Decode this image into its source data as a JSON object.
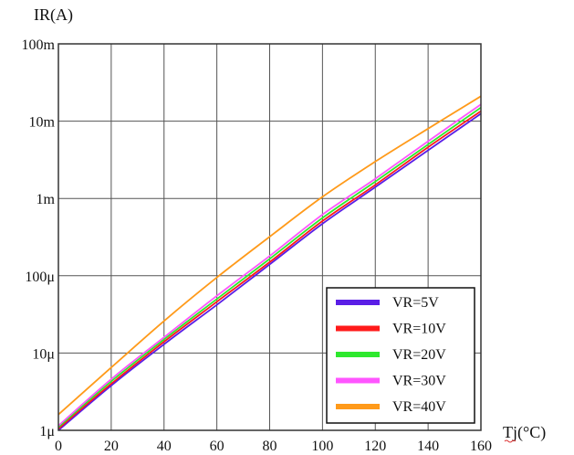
{
  "chart_data": {
    "type": "line",
    "title": "",
    "ylabel": "IR(A)",
    "xlabel": "Tj(°C)",
    "xlim": [
      0,
      160
    ],
    "ylim": [
      1e-06,
      0.1
    ],
    "yscale": "log",
    "grid": true,
    "legend_position": "bottom-right",
    "x_ticks": [
      0,
      20,
      40,
      60,
      80,
      100,
      120,
      140,
      160
    ],
    "x_tick_labels": [
      "0",
      "20",
      "40",
      "60",
      "80",
      "100",
      "120",
      "140",
      "160"
    ],
    "y_ticks": [
      1e-06,
      1e-05,
      0.0001,
      0.001,
      0.01,
      0.1
    ],
    "y_tick_labels": [
      "1μ",
      "10μ",
      "100μ",
      "1m",
      "10m",
      "100m"
    ],
    "x": [
      0,
      20,
      40,
      60,
      80,
      100,
      120,
      140,
      160
    ],
    "series": [
      {
        "name": "VR=5V",
        "color": "#5a1ee6",
        "values": [
          1e-06,
          3.8e-06,
          1.3e-05,
          4.2e-05,
          0.00014,
          0.00047,
          0.0014,
          0.0042,
          0.0125
        ]
      },
      {
        "name": "VR=10V",
        "color": "#ff1a1a",
        "values": [
          1.05e-06,
          4e-06,
          1.4e-05,
          4.6e-05,
          0.00015,
          0.00051,
          0.0015,
          0.0046,
          0.0135
        ]
      },
      {
        "name": "VR=20V",
        "color": "#2ee82e",
        "values": [
          1.1e-06,
          4.3e-06,
          1.5e-05,
          5e-05,
          0.000165,
          0.00056,
          0.00165,
          0.005,
          0.015
        ]
      },
      {
        "name": "VR=30V",
        "color": "#ff55ff",
        "values": [
          1.15e-06,
          4.6e-06,
          1.6e-05,
          5.5e-05,
          0.00018,
          0.00062,
          0.0018,
          0.0055,
          0.0165
        ]
      },
      {
        "name": "VR=40V",
        "color": "#ff9a1a",
        "values": [
          1.6e-06,
          6.5e-06,
          2.6e-05,
          9.5e-05,
          0.00032,
          0.00105,
          0.003,
          0.008,
          0.021
        ]
      }
    ]
  }
}
